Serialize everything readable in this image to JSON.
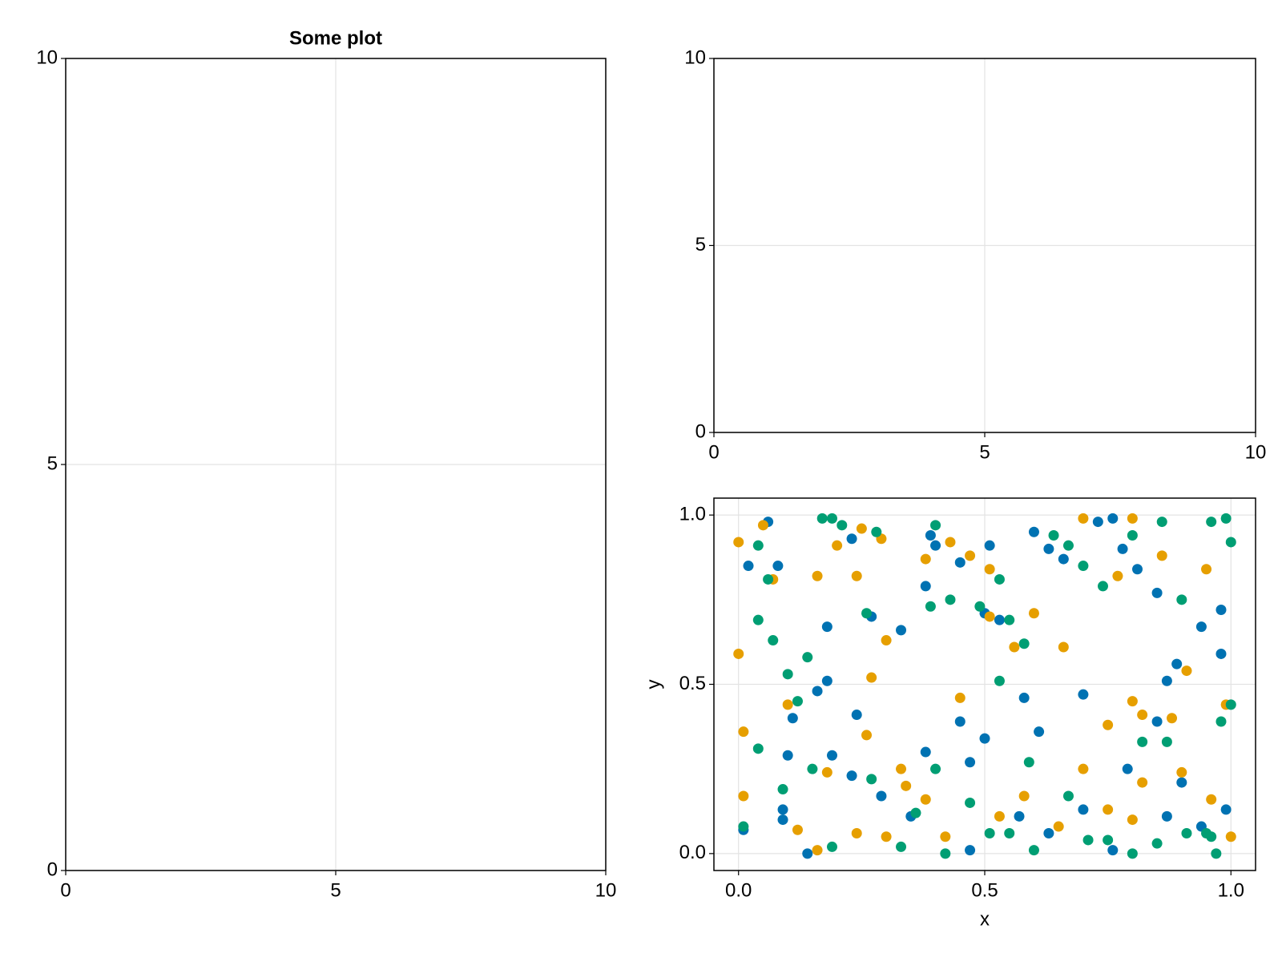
{
  "chart_data": [
    {
      "type": "scatter",
      "title": "Some plot",
      "xlim": [
        0,
        10
      ],
      "ylim": [
        0,
        10
      ],
      "xticks": [
        0,
        5,
        10
      ],
      "yticks": [
        0,
        5,
        10
      ],
      "grid": true
    },
    {
      "type": "scatter",
      "xlim": [
        0,
        10
      ],
      "ylim": [
        0,
        10
      ],
      "xticks": [
        0,
        5,
        10
      ],
      "yticks": [
        0,
        5,
        10
      ],
      "grid": true
    },
    {
      "type": "scatter",
      "x_label": "x",
      "y_label": "y",
      "xlim": [
        -0.05,
        1.05
      ],
      "ylim": [
        -0.05,
        1.05
      ],
      "xticks": [
        {
          "value": 0,
          "label": "0.0"
        },
        0.5,
        {
          "value": 1,
          "label": "1.0"
        }
      ],
      "yticks": [
        {
          "value": 0,
          "label": "0.0"
        },
        0.5,
        {
          "value": 1,
          "label": "1.0"
        }
      ],
      "grid": true,
      "series": [
        {
          "color": "#0072b2",
          "x": [
            0.01,
            0.02,
            0.06,
            0.08,
            0.09,
            0.14,
            0.11,
            0.18,
            0.23,
            0.27,
            0.39,
            0.38,
            0.33,
            0.4,
            0.45,
            0.51,
            0.5,
            0.53,
            0.6,
            0.63,
            0.66,
            0.73,
            0.76,
            0.78,
            0.81,
            0.85,
            0.89,
            0.94,
            0.98,
            0.98,
            0.87,
            0.85,
            0.9,
            0.87,
            0.94,
            0.99,
            0.79,
            0.76,
            0.7,
            0.63,
            0.57,
            0.5,
            0.47,
            0.47,
            0.45,
            0.38,
            0.35,
            0.29,
            0.23,
            0.19,
            0.18,
            0.16,
            0.1,
            0.09,
            0.61,
            0.58,
            0.7,
            0.24
          ],
          "y": [
            0.07,
            0.85,
            0.98,
            0.85,
            0.1,
            0.0,
            0.4,
            0.67,
            0.93,
            0.7,
            0.94,
            0.79,
            0.66,
            0.91,
            0.86,
            0.91,
            0.71,
            0.69,
            0.95,
            0.9,
            0.87,
            0.98,
            0.99,
            0.9,
            0.84,
            0.77,
            0.56,
            0.67,
            0.72,
            0.59,
            0.51,
            0.39,
            0.21,
            0.11,
            0.08,
            0.13,
            0.25,
            0.01,
            0.13,
            0.06,
            0.11,
            0.34,
            0.27,
            0.01,
            0.39,
            0.3,
            0.11,
            0.17,
            0.23,
            0.29,
            0.51,
            0.48,
            0.29,
            0.13,
            0.36,
            0.46,
            0.47,
            0.41
          ]
        },
        {
          "color": "#e69f00",
          "x": [
            0.0,
            0.0,
            0.01,
            0.01,
            0.05,
            0.07,
            0.1,
            0.12,
            0.16,
            0.2,
            0.24,
            0.25,
            0.29,
            0.3,
            0.27,
            0.24,
            0.3,
            0.33,
            0.38,
            0.43,
            0.47,
            0.51,
            0.51,
            0.56,
            0.6,
            0.66,
            0.7,
            0.77,
            0.8,
            0.86,
            0.91,
            0.95,
            0.99,
            1.0,
            0.96,
            0.9,
            0.82,
            0.8,
            0.75,
            0.7,
            0.65,
            0.58,
            0.53,
            0.45,
            0.42,
            0.38,
            0.34,
            0.26,
            0.18,
            0.16,
            0.82,
            0.88,
            0.8,
            0.75
          ],
          "y": [
            0.92,
            0.59,
            0.36,
            0.17,
            0.97,
            0.81,
            0.44,
            0.07,
            0.82,
            0.91,
            0.82,
            0.96,
            0.93,
            0.63,
            0.52,
            0.06,
            0.05,
            0.25,
            0.87,
            0.92,
            0.88,
            0.84,
            0.7,
            0.61,
            0.71,
            0.61,
            0.99,
            0.82,
            0.99,
            0.88,
            0.54,
            0.84,
            0.44,
            0.05,
            0.16,
            0.24,
            0.21,
            0.1,
            0.13,
            0.25,
            0.08,
            0.17,
            0.11,
            0.46,
            0.05,
            0.16,
            0.2,
            0.35,
            0.24,
            0.01,
            0.41,
            0.4,
            0.45,
            0.38
          ]
        },
        {
          "color": "#009e73",
          "x": [
            0.01,
            0.04,
            0.04,
            0.06,
            0.07,
            0.1,
            0.12,
            0.14,
            0.17,
            0.19,
            0.21,
            0.26,
            0.28,
            0.4,
            0.39,
            0.43,
            0.49,
            0.53,
            0.55,
            0.58,
            0.64,
            0.67,
            0.7,
            0.74,
            0.8,
            0.86,
            0.9,
            0.96,
            0.99,
            1.0,
            1.0,
            0.98,
            0.97,
            0.96,
            0.91,
            0.85,
            0.8,
            0.75,
            0.71,
            0.67,
            0.6,
            0.55,
            0.51,
            0.47,
            0.42,
            0.4,
            0.36,
            0.33,
            0.27,
            0.19,
            0.15,
            0.09,
            0.04,
            0.53,
            0.59,
            0.82,
            0.87,
            0.95
          ],
          "y": [
            0.08,
            0.69,
            0.91,
            0.81,
            0.63,
            0.53,
            0.45,
            0.58,
            0.99,
            0.99,
            0.97,
            0.71,
            0.95,
            0.97,
            0.73,
            0.75,
            0.73,
            0.81,
            0.69,
            0.62,
            0.94,
            0.91,
            0.85,
            0.79,
            0.94,
            0.98,
            0.75,
            0.98,
            0.99,
            0.92,
            0.44,
            0.39,
            0.0,
            0.05,
            0.06,
            0.03,
            0.0,
            0.04,
            0.04,
            0.17,
            0.01,
            0.06,
            0.06,
            0.15,
            0.0,
            0.25,
            0.12,
            0.02,
            0.22,
            0.02,
            0.25,
            0.19,
            0.31,
            0.51,
            0.27,
            0.33,
            0.33,
            0.06
          ]
        }
      ]
    }
  ]
}
